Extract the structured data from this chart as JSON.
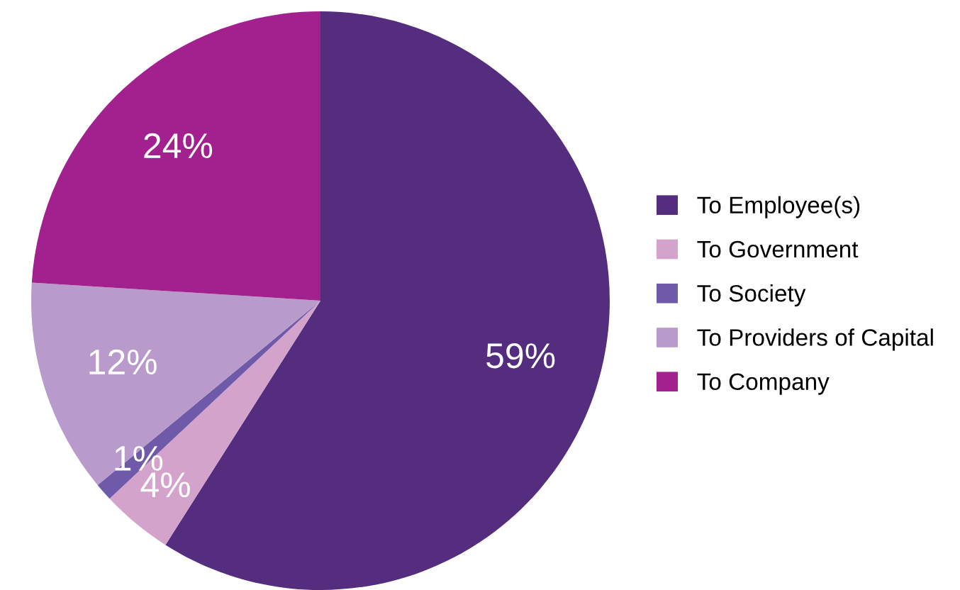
{
  "chart_data": {
    "type": "pie",
    "categories": [
      "To Employee(s)",
      "To Government",
      "To Society",
      "To Providers of Capital",
      "To Company"
    ],
    "values": [
      59,
      4,
      1,
      12,
      24
    ],
    "colors": [
      "#552d7e",
      "#d4a3cc",
      "#6e5aa8",
      "#b89bcb",
      "#a2218f"
    ],
    "value_labels": [
      "59%",
      "4%",
      "1%",
      "12%",
      "24%"
    ],
    "legend": "right"
  }
}
